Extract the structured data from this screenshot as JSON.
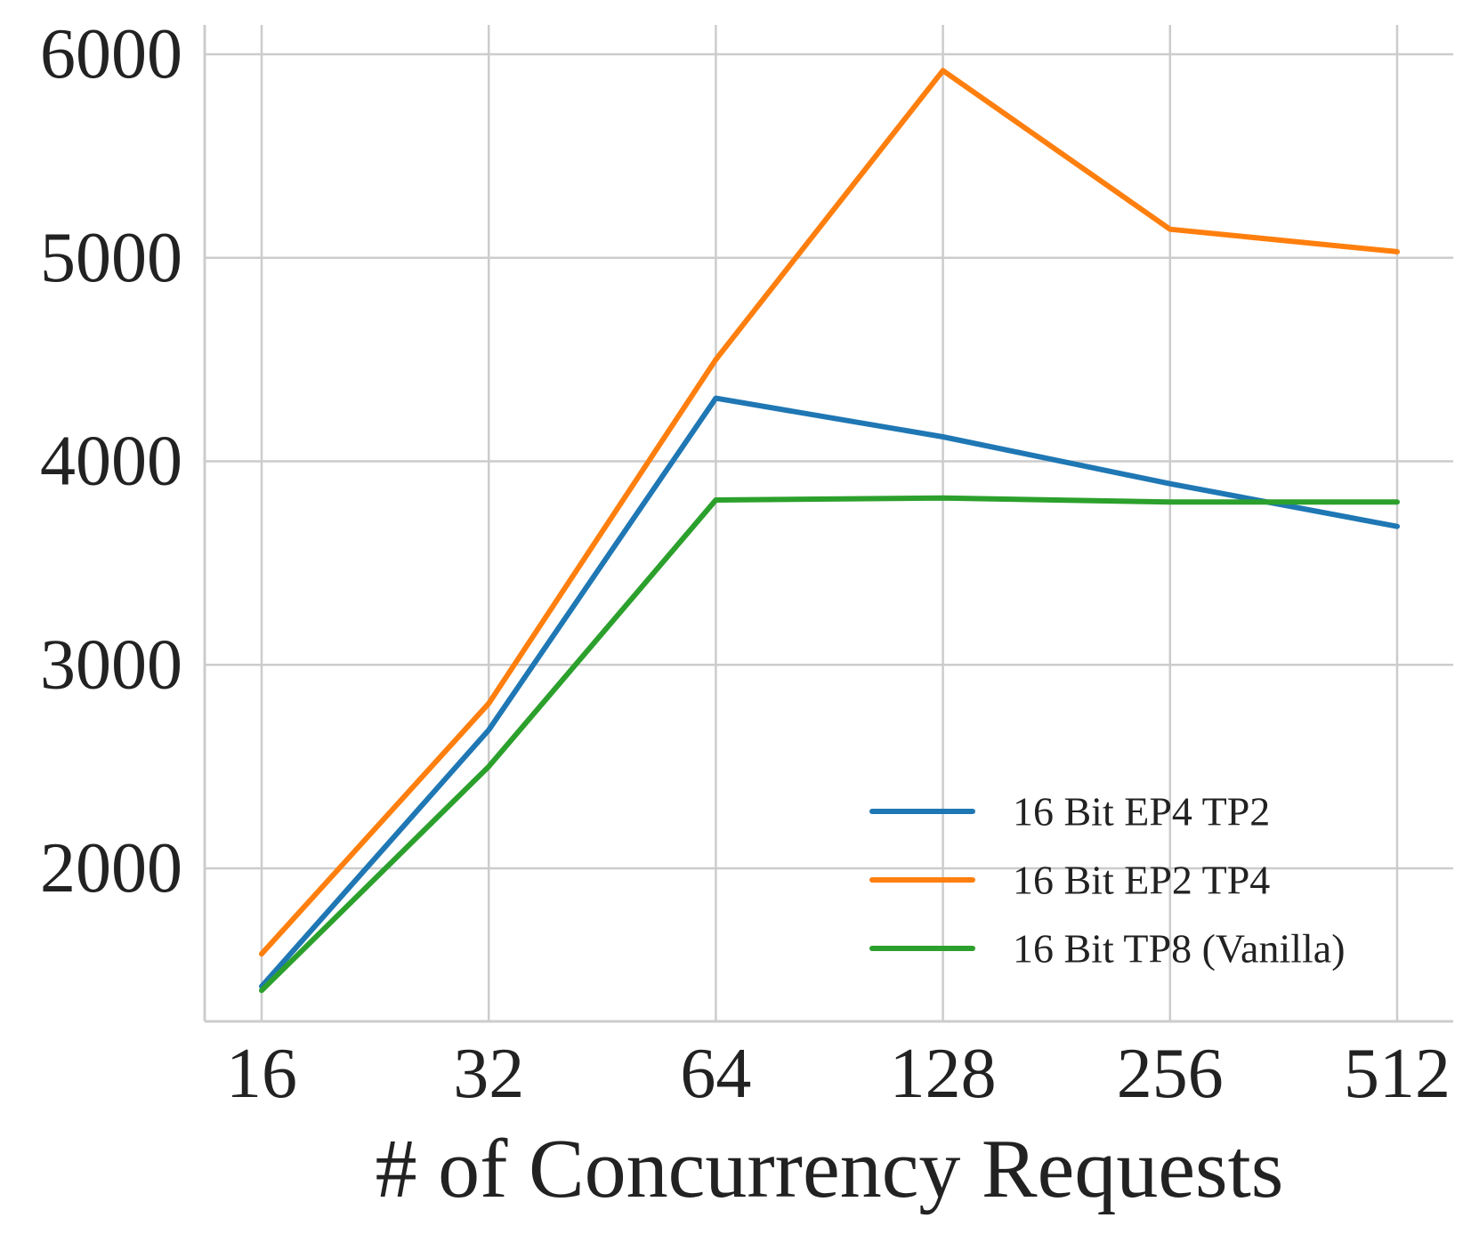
{
  "chart_data": {
    "type": "line",
    "title": "",
    "xlabel": "# of Concurrency Requests",
    "ylabel": "",
    "x": [
      16,
      32,
      64,
      128,
      256,
      512
    ],
    "x_tick_labels": [
      "16",
      "32",
      "64",
      "128",
      "256",
      "512"
    ],
    "x_scale": "log2",
    "y_ticks": [
      2000,
      3000,
      4000,
      5000,
      6000
    ],
    "y_tick_labels": [
      "2000",
      "3000",
      "4000",
      "5000",
      "6000"
    ],
    "ylim": [
      1280,
      6160
    ],
    "grid": true,
    "legend_position": "lower-right",
    "series": [
      {
        "name": "16 Bit EP4 TP2",
        "color": "#1f77b4",
        "values": [
          1420,
          2680,
          4310,
          4120,
          3890,
          3680
        ]
      },
      {
        "name": "16 Bit EP2 TP4",
        "color": "#ff7f0e",
        "values": [
          1580,
          2810,
          4500,
          5920,
          5140,
          5030
        ]
      },
      {
        "name": "16 Bit TP8 (Vanilla)",
        "color": "#2ca02c",
        "values": [
          1400,
          2500,
          3810,
          3820,
          3800,
          3800
        ]
      }
    ]
  }
}
